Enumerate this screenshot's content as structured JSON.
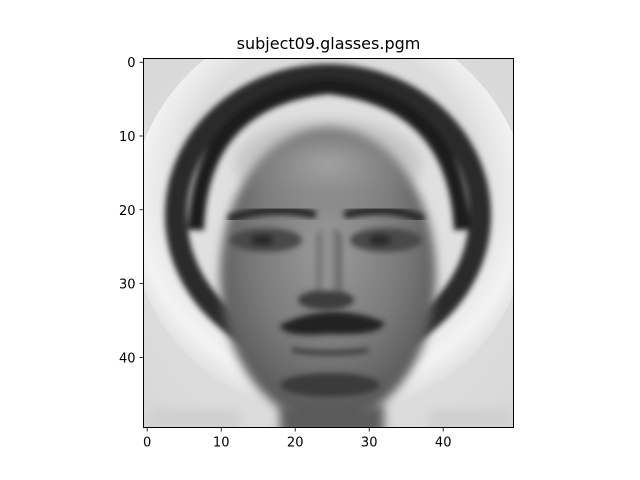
{
  "figure": {
    "title": "subject09.glasses.pgm"
  },
  "image": {
    "subject": "grayscale face",
    "grid_size": [
      50,
      50
    ],
    "colormap": "gray"
  },
  "axes": {
    "x": {
      "ticks": [
        0,
        10,
        20,
        30,
        40
      ],
      "tick_labels": [
        "0",
        "10",
        "20",
        "30",
        "40"
      ],
      "range": [
        -0.5,
        49.5
      ]
    },
    "y": {
      "ticks": [
        0,
        10,
        20,
        30,
        40
      ],
      "tick_labels": [
        "0",
        "10",
        "20",
        "30",
        "40"
      ],
      "range": [
        -0.5,
        49.5
      ],
      "inverted": true
    }
  }
}
